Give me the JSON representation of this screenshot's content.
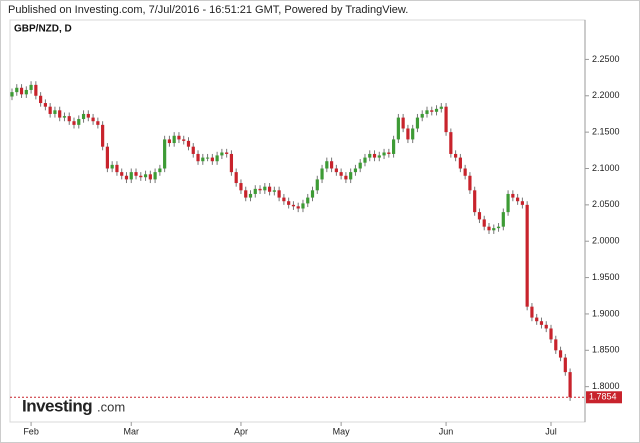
{
  "chart_data": {
    "type": "candlestick",
    "header": "Published on Investing.com, 7/Jul/2016 - 16:51:21 GMT, Powered by TradingView.",
    "title": "GBP/NZD, D",
    "logo": {
      "name": "Investing",
      "suffix": ".com"
    },
    "up_color": "#3d9b35",
    "down_color": "#c8232c",
    "grid": false,
    "last_price": 1.7854,
    "ylim": [
      1.7514,
      2.3042
    ],
    "yticks": [
      {
        "value": 2.25,
        "label": "2.2500"
      },
      {
        "value": 2.2,
        "label": "2.2000"
      },
      {
        "value": 2.15,
        "label": "2.1500"
      },
      {
        "value": 2.1,
        "label": "2.1000"
      },
      {
        "value": 2.05,
        "label": "2.0500"
      },
      {
        "value": 2.0,
        "label": "2.0000"
      },
      {
        "value": 1.95,
        "label": "1.9500"
      },
      {
        "value": 1.9,
        "label": "1.9000"
      },
      {
        "value": 1.85,
        "label": "1.8500"
      },
      {
        "value": 1.8,
        "label": "1.8000"
      }
    ],
    "categories": [
      null,
      null,
      null,
      null,
      "Feb",
      null,
      null,
      null,
      null,
      null,
      null,
      null,
      null,
      null,
      null,
      null,
      null,
      null,
      null,
      null,
      null,
      null,
      null,
      null,
      null,
      "Mar",
      null,
      null,
      null,
      null,
      null,
      null,
      null,
      null,
      null,
      null,
      null,
      null,
      null,
      null,
      null,
      null,
      null,
      null,
      null,
      null,
      null,
      null,
      "Apr",
      null,
      null,
      null,
      null,
      null,
      null,
      null,
      null,
      null,
      null,
      null,
      null,
      null,
      null,
      null,
      null,
      null,
      null,
      null,
      null,
      "May",
      null,
      null,
      null,
      null,
      null,
      null,
      null,
      null,
      null,
      null,
      null,
      null,
      null,
      null,
      null,
      null,
      null,
      null,
      null,
      null,
      null,
      "Jun",
      null,
      null,
      null,
      null,
      null,
      null,
      null,
      null,
      null,
      null,
      null,
      null,
      null,
      null,
      null,
      null,
      null,
      null,
      null,
      null,
      null,
      "Jul",
      null,
      null,
      null,
      null
    ],
    "open": [
      2.199,
      2.205,
      2.211,
      2.202,
      2.208,
      2.215,
      2.2,
      2.19,
      2.185,
      2.175,
      2.18,
      2.17,
      2.172,
      2.165,
      2.16,
      2.168,
      2.175,
      2.17,
      2.165,
      2.16,
      2.13,
      2.1,
      2.105,
      2.095,
      2.09,
      2.085,
      2.095,
      2.09,
      2.088,
      2.092,
      2.085,
      2.095,
      2.1,
      2.14,
      2.135,
      2.145,
      2.14,
      2.138,
      2.13,
      2.12,
      2.11,
      2.115,
      2.115,
      2.11,
      2.118,
      2.122,
      2.12,
      2.095,
      2.08,
      2.07,
      2.06,
      2.065,
      2.072,
      2.07,
      2.075,
      2.068,
      2.07,
      2.06,
      2.055,
      2.05,
      2.048,
      2.045,
      2.052,
      2.06,
      2.07,
      2.085,
      2.1,
      2.11,
      2.1,
      2.095,
      2.09,
      2.085,
      2.095,
      2.1,
      2.108,
      2.115,
      2.12,
      2.115,
      2.118,
      2.122,
      2.12,
      2.14,
      2.17,
      2.155,
      2.14,
      2.155,
      2.17,
      2.175,
      2.18,
      2.178,
      2.182,
      2.185,
      2.15,
      2.12,
      2.115,
      2.1,
      2.09,
      2.07,
      2.04,
      2.03,
      2.02,
      2.015,
      2.018,
      2.02,
      2.04,
      2.065,
      2.06,
      2.055,
      2.05,
      1.91,
      1.895,
      1.89,
      1.885,
      1.88,
      1.865,
      1.85,
      1.84,
      1.82
    ],
    "high": [
      2.21,
      2.216,
      2.216,
      2.213,
      2.22,
      2.22,
      2.205,
      2.195,
      2.19,
      2.185,
      2.185,
      2.177,
      2.177,
      2.17,
      2.173,
      2.18,
      2.18,
      2.175,
      2.17,
      2.165,
      2.135,
      2.11,
      2.11,
      2.1,
      2.095,
      2.1,
      2.1,
      2.095,
      2.097,
      2.097,
      2.1,
      2.105,
      2.145,
      2.145,
      2.15,
      2.15,
      2.145,
      2.143,
      2.135,
      2.125,
      2.12,
      2.12,
      2.12,
      2.123,
      2.127,
      2.127,
      2.125,
      2.1,
      2.085,
      2.075,
      2.07,
      2.077,
      2.077,
      2.08,
      2.08,
      2.075,
      2.075,
      2.065,
      2.06,
      2.055,
      2.053,
      2.057,
      2.065,
      2.075,
      2.09,
      2.105,
      2.115,
      2.115,
      2.105,
      2.1,
      2.095,
      2.1,
      2.105,
      2.113,
      2.12,
      2.125,
      2.125,
      2.123,
      2.127,
      2.127,
      2.145,
      2.175,
      2.175,
      2.16,
      2.16,
      2.175,
      2.18,
      2.185,
      2.185,
      2.187,
      2.19,
      2.19,
      2.155,
      2.125,
      2.12,
      2.105,
      2.095,
      2.075,
      2.045,
      2.035,
      2.025,
      2.023,
      2.025,
      2.045,
      2.07,
      2.07,
      2.065,
      2.06,
      2.055,
      1.915,
      1.9,
      1.895,
      1.89,
      1.885,
      1.87,
      1.855,
      1.845,
      1.825
    ],
    "low": [
      2.194,
      2.2,
      2.197,
      2.197,
      2.203,
      2.195,
      2.185,
      2.18,
      2.17,
      2.17,
      2.165,
      2.165,
      2.16,
      2.155,
      2.155,
      2.163,
      2.165,
      2.16,
      2.155,
      2.125,
      2.095,
      2.095,
      2.09,
      2.085,
      2.08,
      2.08,
      2.085,
      2.083,
      2.083,
      2.08,
      2.08,
      2.09,
      2.095,
      2.13,
      2.13,
      2.135,
      2.133,
      2.125,
      2.115,
      2.105,
      2.105,
      2.11,
      2.105,
      2.105,
      2.113,
      2.115,
      2.09,
      2.075,
      2.065,
      2.055,
      2.055,
      2.06,
      2.065,
      2.065,
      2.063,
      2.063,
      2.055,
      2.05,
      2.045,
      2.043,
      2.04,
      2.04,
      2.047,
      2.055,
      2.065,
      2.08,
      2.095,
      2.095,
      2.09,
      2.085,
      2.08,
      2.08,
      2.09,
      2.095,
      2.103,
      2.11,
      2.11,
      2.11,
      2.113,
      2.115,
      2.115,
      2.135,
      2.15,
      2.135,
      2.135,
      2.15,
      2.165,
      2.17,
      2.173,
      2.173,
      2.177,
      2.145,
      2.115,
      2.11,
      2.095,
      2.085,
      2.065,
      2.035,
      2.025,
      2.015,
      2.01,
      2.01,
      2.013,
      2.015,
      2.035,
      2.055,
      2.05,
      2.045,
      1.905,
      1.89,
      1.885,
      1.88,
      1.875,
      1.86,
      1.845,
      1.835,
      1.815,
      1.7804
    ],
    "close": [
      2.205,
      2.211,
      2.202,
      2.208,
      2.215,
      2.2,
      2.19,
      2.185,
      2.175,
      2.18,
      2.17,
      2.172,
      2.165,
      2.16,
      2.168,
      2.175,
      2.17,
      2.165,
      2.16,
      2.13,
      2.1,
      2.105,
      2.095,
      2.09,
      2.085,
      2.095,
      2.09,
      2.088,
      2.092,
      2.085,
      2.095,
      2.1,
      2.14,
      2.135,
      2.145,
      2.14,
      2.138,
      2.13,
      2.12,
      2.11,
      2.115,
      2.115,
      2.11,
      2.118,
      2.122,
      2.12,
      2.095,
      2.08,
      2.07,
      2.06,
      2.065,
      2.072,
      2.07,
      2.075,
      2.068,
      2.07,
      2.06,
      2.055,
      2.05,
      2.048,
      2.045,
      2.052,
      2.06,
      2.07,
      2.085,
      2.1,
      2.11,
      2.1,
      2.095,
      2.09,
      2.085,
      2.095,
      2.1,
      2.108,
      2.115,
      2.12,
      2.115,
      2.118,
      2.122,
      2.12,
      2.14,
      2.17,
      2.155,
      2.14,
      2.155,
      2.17,
      2.175,
      2.18,
      2.178,
      2.182,
      2.185,
      2.15,
      2.12,
      2.115,
      2.1,
      2.09,
      2.07,
      2.04,
      2.03,
      2.02,
      2.015,
      2.018,
      2.02,
      2.04,
      2.065,
      2.06,
      2.055,
      2.05,
      1.91,
      1.895,
      1.89,
      1.885,
      1.88,
      1.865,
      1.85,
      1.84,
      1.82,
      1.7854
    ]
  }
}
